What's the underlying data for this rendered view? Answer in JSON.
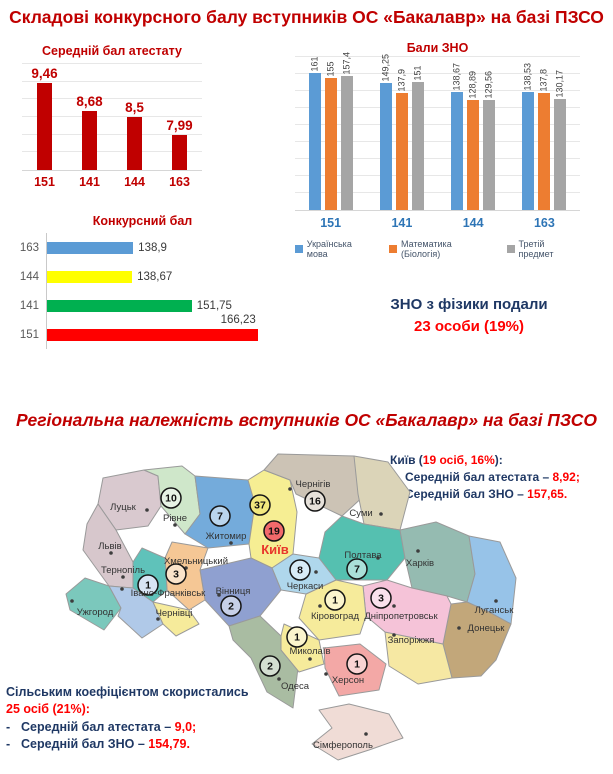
{
  "colors": {
    "title_red": "#C00000",
    "note_navy": "#1F3864",
    "note_red": "#FF0000",
    "category_blue": "#2E75B6"
  },
  "slide1": {
    "title": "Складові конкурсного балу вступників ОС «Бакалавр» на базі ПЗСО",
    "physics_note": {
      "line1": "ЗНО з фізики подали",
      "line2": "23 особи (19%)"
    }
  },
  "slide2": {
    "title": "Регіональна належність вступників ОС «Бакалавр» на базі ПЗСО",
    "kyiv_note": {
      "prefix": "Київ (",
      "highlight": "19 осіб, 16%",
      "suffix": "):",
      "items": [
        {
          "label": "Середній бал атестата – ",
          "value": "8,92;"
        },
        {
          "label": "Середній бал ЗНО – ",
          "value": "157,65."
        }
      ]
    },
    "rural_note": {
      "line1": "Сільським коефіцієнтом скористались",
      "line2": "25 осіб (21%):",
      "items": [
        {
          "label": "Середній бал атестата – ",
          "value": "9,0;"
        },
        {
          "label": "Середній бал ЗНО – ",
          "value": "154,79."
        }
      ]
    },
    "map": {
      "regions": [
        {
          "id": "volyn",
          "city": "Луцьк",
          "count": null,
          "fill": "#D9C9CF"
        },
        {
          "id": "rivne",
          "city": "Рівне",
          "count": 10,
          "fill": "#CFE7CA"
        },
        {
          "id": "zhytomyr",
          "city": "Житомир",
          "count": 7,
          "fill": "#74ABDB"
        },
        {
          "id": "kyiv_oblast",
          "city": "",
          "count": 37,
          "fill": "#F6EE93"
        },
        {
          "id": "kyiv_city",
          "city": "Київ",
          "count": 19,
          "fill": "#F2696B"
        },
        {
          "id": "chernihiv",
          "city": "Чернігів",
          "count": 16,
          "fill": "#CCC3B5"
        },
        {
          "id": "sumy",
          "city": "Суми",
          "count": null,
          "fill": "#DBD4B8"
        },
        {
          "id": "poltava",
          "city": "Полтава",
          "count": 7,
          "fill": "#55C0B0"
        },
        {
          "id": "kharkiv",
          "city": "Харків",
          "count": null,
          "fill": "#95BBB1"
        },
        {
          "id": "luhansk",
          "city": "Луганськ",
          "count": null,
          "fill": "#97C3E8"
        },
        {
          "id": "donetsk",
          "city": "Донецьк",
          "count": null,
          "fill": "#C2A77A"
        },
        {
          "id": "zaporizhzhia",
          "city": "Запоріжжя",
          "count": null,
          "fill": "#F6E8A3"
        },
        {
          "id": "dnipro",
          "city": "Дніпропетровськ",
          "count": 3,
          "fill": "#F5C3D8"
        },
        {
          "id": "kirovohrad",
          "city": "Кіровоград",
          "count": 1,
          "fill": "#F6EB9B"
        },
        {
          "id": "cherkasy",
          "city": "Черкаси",
          "count": 8,
          "fill": "#AFD7EC"
        },
        {
          "id": "vinnytsia",
          "city": "Вінниця",
          "count": 2,
          "fill": "#8FA0D0"
        },
        {
          "id": "khmelnytskyi",
          "city": "Хмельницький",
          "count": 3,
          "fill": "#F5C795"
        },
        {
          "id": "ternopil",
          "city": "Тернопіль",
          "count": null,
          "fill": "#5FC2BA"
        },
        {
          "id": "lviv",
          "city": "Львів",
          "count": null,
          "fill": "#D7C7CC"
        },
        {
          "id": "zakarpattia",
          "city": "Ужгород",
          "count": null,
          "fill": "#7BC8BC"
        },
        {
          "id": "ivano_frankivsk",
          "city": "Івано-Франківськ",
          "count": 1,
          "fill": "#B0C9E8"
        },
        {
          "id": "chernivtsi",
          "city": "Чернівці",
          "count": null,
          "fill": "#F6EB9B"
        },
        {
          "id": "odesa",
          "city": "Одеса",
          "count": 2,
          "fill": "#A9BCA2"
        },
        {
          "id": "mykolaiv",
          "city": "Миколаїв",
          "count": 1,
          "fill": "#F6EB9B"
        },
        {
          "id": "kherson",
          "city": "Херсон",
          "count": 1,
          "fill": "#F3A8A6"
        },
        {
          "id": "crimea",
          "city": "Сімферополь",
          "count": null,
          "fill": "#F0DCD6"
        }
      ]
    }
  },
  "chart_data": [
    {
      "id": "atestat",
      "type": "bar",
      "title": "Середній бал атестату",
      "categories": [
        "151",
        "141",
        "144",
        "163"
      ],
      "values": [
        9.46,
        8.68,
        8.5,
        7.99
      ],
      "value_labels": [
        "9,46",
        "8,68",
        "8,5",
        "7,99"
      ],
      "ylim": [
        7,
        10
      ],
      "bar_color": "#C00000",
      "grid": true,
      "legend_position": "none"
    },
    {
      "id": "zno",
      "type": "bar",
      "title": "Бали ЗНО",
      "categories": [
        "151",
        "141",
        "144",
        "163"
      ],
      "series": [
        {
          "name": "Українська мова",
          "color": "#5B9BD5",
          "values": [
            161,
            149.25,
            138.67,
            138.53
          ],
          "value_labels": [
            "161",
            "149,25",
            "138,67",
            "138,53"
          ]
        },
        {
          "name": "Математика (Біологія)",
          "color": "#ED7D31",
          "values": [
            155,
            137.9,
            128.89,
            137.8
          ],
          "value_labels": [
            "155",
            "137,9",
            "128,89",
            "137,8"
          ]
        },
        {
          "name": "Третій предмет",
          "color": "#A5A5A5",
          "values": [
            157.4,
            151,
            129.56,
            130.17
          ],
          "value_labels": [
            "157,4",
            "151",
            "129,56",
            "130,17"
          ]
        }
      ],
      "ylim": [
        0,
        180
      ],
      "grid": true,
      "legend_position": "bottom"
    },
    {
      "id": "konkurs",
      "type": "bar",
      "orientation": "horizontal",
      "title": "Конкурсний бал",
      "categories": [
        "163",
        "144",
        "141",
        "151"
      ],
      "values": [
        138.9,
        138.67,
        151.75,
        166.23
      ],
      "value_labels": [
        "138,9",
        "138,67",
        "151,75",
        "166,23"
      ],
      "bar_colors": [
        "#5B9BD5",
        "#FFFF00",
        "#00B050",
        "#FF0000"
      ],
      "xlim": [
        120,
        170
      ],
      "grid": false,
      "legend_position": "none"
    }
  ]
}
